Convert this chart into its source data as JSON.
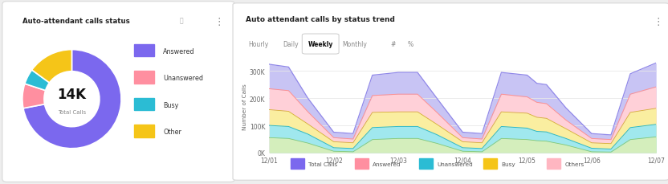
{
  "donut": {
    "title": "Auto-attendant calls status",
    "center_text": "14K",
    "center_subtext": "Total Calls",
    "values": [
      72,
      8,
      5,
      15
    ],
    "labels": [
      "Answered",
      "Unanswered",
      "Busy",
      "Other"
    ],
    "colors": [
      "#7B68EE",
      "#FF8FA0",
      "#2BBCD4",
      "#F5C518"
    ],
    "info_icon": true
  },
  "area": {
    "title": "Auto attendant calls by status trend",
    "ylabel": "Number of Calls",
    "tabs": [
      "Hourly",
      "Daily",
      "Weekly",
      "Monthly",
      "#",
      "%"
    ],
    "active_tab": "Weekly",
    "x_labels": [
      "12/01",
      "12/02",
      "12/03",
      "12/04",
      "12/05",
      "12/06",
      "12/07"
    ],
    "yticks": [
      0,
      100000,
      200000,
      300000
    ],
    "ytick_labels": [
      "0K",
      "100K",
      "200K",
      "300K"
    ],
    "legend": [
      "Total Calls",
      "Answered",
      "Unanswered",
      "Busy",
      "Others"
    ],
    "legend_colors": [
      "#7B68EE",
      "#FF8FA0",
      "#2BBCD4",
      "#F5C518",
      "#FFB6C1"
    ],
    "fill_colors": {
      "total": "#C8C4F4",
      "answered": "#FFD0D8",
      "busy": "#FAEEA0",
      "unanswered": "#A0E8EE",
      "others": "#D4EEBC"
    },
    "line_colors": {
      "total": "#9088E8",
      "answered": "#FF9090",
      "busy": "#D4B030",
      "unanswered": "#28B8CC",
      "others": "#88C870"
    },
    "data": {
      "x": [
        0,
        0.3,
        0.6,
        1.0,
        1.3,
        1.6,
        2.0,
        2.3,
        2.6,
        3.0,
        3.3,
        3.6,
        4.0,
        4.15,
        4.3,
        4.6,
        5.0,
        5.3,
        5.6,
        6.0
      ],
      "total": [
        325000,
        315000,
        200000,
        75000,
        70000,
        285000,
        295000,
        295000,
        200000,
        75000,
        70000,
        295000,
        285000,
        255000,
        250000,
        165000,
        70000,
        65000,
        290000,
        330000
      ],
      "answered": [
        235000,
        228000,
        150000,
        55000,
        50000,
        210000,
        215000,
        215000,
        148000,
        55000,
        50000,
        215000,
        205000,
        185000,
        180000,
        120000,
        52000,
        48000,
        215000,
        242000
      ],
      "busy": [
        158000,
        152000,
        105000,
        40000,
        36000,
        148000,
        150000,
        150000,
        104000,
        40000,
        36000,
        150000,
        145000,
        130000,
        126000,
        88000,
        36000,
        33000,
        148000,
        163000
      ],
      "unanswered": [
        100000,
        96000,
        68000,
        18000,
        15000,
        92000,
        96000,
        96000,
        66000,
        18000,
        15000,
        96000,
        90000,
        78000,
        76000,
        52000,
        16000,
        13000,
        92000,
        104000
      ],
      "others": [
        55000,
        52000,
        35000,
        5000,
        3000,
        48000,
        52000,
        52000,
        34000,
        5000,
        3000,
        52000,
        48000,
        44000,
        42000,
        28000,
        3000,
        2000,
        48000,
        58000
      ]
    }
  },
  "bg_color": "#eeeeee",
  "card_color": "#ffffff"
}
